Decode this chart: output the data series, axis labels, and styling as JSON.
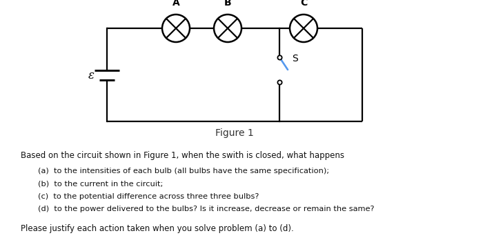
{
  "background_color": "#ffffff",
  "title": "Figure 1",
  "question_text": "Based on the circuit shown in Figure 1, when the swith is closed, what happens",
  "items": [
    "(a)  to the intensities of each bulb (all bulbs have the same specification);",
    "(b)  to the current in the circuit;",
    "(c)  to the potential difference across three three bulbs?",
    "(d)  to the power delivered to the bulbs? Is it increase, decrease or remain the same?"
  ],
  "footer": "Please justify each action taken when you solve problem (a) to (d).",
  "bulb_labels": [
    "A",
    "B",
    "C"
  ],
  "switch_label": "S",
  "battery_label": "ε",
  "circuit_color": "#000000",
  "switch_color": "#5599ee",
  "line_width": 1.6
}
